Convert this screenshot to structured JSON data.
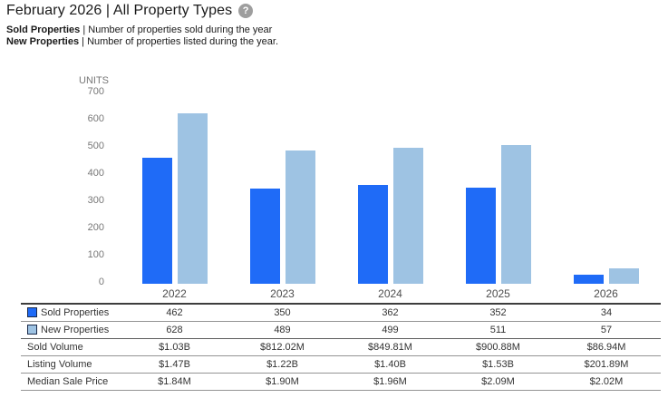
{
  "header": {
    "title": "February 2026 | All Property Types",
    "help_icon": "?",
    "legend_lines": [
      {
        "label": "Sold Properties",
        "rest": "| Number of properties sold during the year"
      },
      {
        "label": "New Properties",
        "rest": "| Number of properties listed during the year."
      }
    ]
  },
  "chart_data": {
    "type": "bar",
    "title": "February 2026 | All Property Types",
    "ylabel": "UNITS",
    "xlabel": "",
    "categories": [
      "2022",
      "2023",
      "2024",
      "2025",
      "2026"
    ],
    "series": [
      {
        "name": "Sold Properties",
        "color": "#1f6bf7",
        "values": [
          462,
          350,
          362,
          352,
          34
        ]
      },
      {
        "name": "New Properties",
        "color": "#9ec3e3",
        "values": [
          628,
          489,
          499,
          511,
          57
        ]
      }
    ],
    "ylim": [
      0,
      700
    ],
    "yticks": [
      700,
      600,
      500,
      400,
      300,
      200,
      100,
      0
    ],
    "grid": false,
    "legend_position": "table-below"
  },
  "table": {
    "rows": [
      {
        "label": "Sold Properties",
        "swatch": "#1f6bf7",
        "section_end": false,
        "values": [
          "462",
          "350",
          "362",
          "352",
          "34"
        ]
      },
      {
        "label": "New Properties",
        "swatch": "#9ec3e3",
        "section_end": true,
        "values": [
          "628",
          "489",
          "499",
          "511",
          "57"
        ]
      },
      {
        "label": "Sold Volume",
        "section_end": false,
        "values": [
          "$1.03B",
          "$812.02M",
          "$849.81M",
          "$900.88M",
          "$86.94M"
        ]
      },
      {
        "label": "Listing Volume",
        "section_end": false,
        "values": [
          "$1.47B",
          "$1.22B",
          "$1.40B",
          "$1.53B",
          "$201.89M"
        ]
      },
      {
        "label": "Median Sale Price",
        "section_end": false,
        "values": [
          "$1.84M",
          "$1.90M",
          "$1.96M",
          "$2.09M",
          "$2.02M"
        ]
      }
    ]
  },
  "colors": {
    "sold_bar": "#1f6bf7",
    "new_bar": "#9ec3e3",
    "axis_text": "#777777",
    "table_text": "#333333",
    "help_icon_bg": "#9e9e9e"
  }
}
